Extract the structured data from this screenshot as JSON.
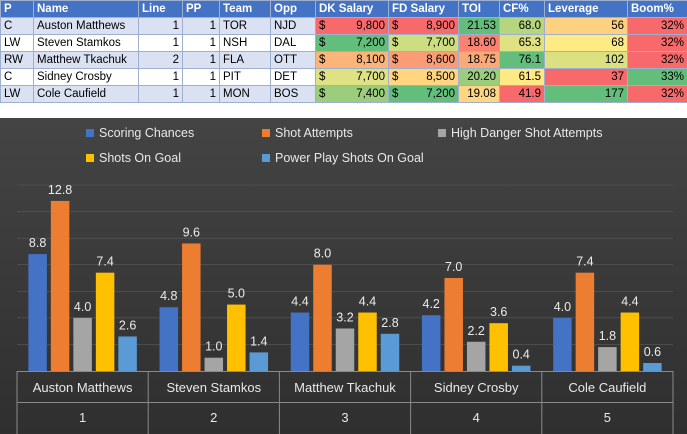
{
  "table": {
    "headers": [
      "P",
      "Name",
      "Line",
      "PP",
      "Team",
      "Opp",
      "DK Salary",
      "FD Salary",
      "TOI",
      "CF%",
      "Leverage",
      "Boom%"
    ],
    "currency_symbol": "$",
    "rows": [
      {
        "pos": "C",
        "name": "Auston Matthews",
        "line": "1",
        "pp": "1",
        "team": "TOR",
        "opp": "NJD",
        "dk": "9,800",
        "fd": "8,900",
        "toi": "21.53",
        "cf": "68.0",
        "lev": "56",
        "boom": "32%"
      },
      {
        "pos": "LW",
        "name": "Steven Stamkos",
        "line": "1",
        "pp": "1",
        "team": "NSH",
        "opp": "DAL",
        "dk": "7,200",
        "fd": "7,700",
        "toi": "18.60",
        "cf": "65.3",
        "lev": "68",
        "boom": "32%"
      },
      {
        "pos": "RW",
        "name": "Matthew Tkachuk",
        "line": "2",
        "pp": "1",
        "team": "FLA",
        "opp": "OTT",
        "dk": "8,100",
        "fd": "8,600",
        "toi": "18.75",
        "cf": "76.1",
        "lev": "102",
        "boom": "32%"
      },
      {
        "pos": "C",
        "name": "Sidney Crosby",
        "line": "1",
        "pp": "1",
        "team": "PIT",
        "opp": "DET",
        "dk": "7,700",
        "fd": "8,500",
        "toi": "20.20",
        "cf": "61.5",
        "lev": "37",
        "boom": "33%"
      },
      {
        "pos": "LW",
        "name": "Cole Caufield",
        "line": "1",
        "pp": "1",
        "team": "MON",
        "opp": "BOS",
        "dk": "7,400",
        "fd": "7,200",
        "toi": "19.08",
        "cf": "41.9",
        "lev": "177",
        "boom": "32%"
      }
    ],
    "cell_colors": [
      {
        "dk": "#f8696b",
        "fd": "#f8696b",
        "toi": "#63be7b",
        "cf": "#b5d57f",
        "lev": "#fdd17f",
        "boom": "#f8696b"
      },
      {
        "dk": "#63be7b",
        "fd": "#cddd82",
        "toi": "#f98370",
        "cf": "#dfe283",
        "lev": "#ffeb84",
        "boom": "#f8696b"
      },
      {
        "dk": "#fcb479",
        "fd": "#fa9c75",
        "toi": "#fbaa77",
        "cf": "#63be7b",
        "lev": "#dbe081",
        "boom": "#f8696b"
      },
      {
        "dk": "#dfe283",
        "fd": "#ffd580",
        "toi": "#9bcd7d",
        "cf": "#ffe984",
        "lev": "#f8696b",
        "boom": "#63be7b"
      },
      {
        "dk": "#9bcd7d",
        "fd": "#63be7b",
        "toi": "#fed681",
        "cf": "#f8696b",
        "lev": "#63be7b",
        "boom": "#f8696b"
      }
    ]
  },
  "chart_data": {
    "type": "bar",
    "categories": [
      "Auston Matthews",
      "Steven Stamkos",
      "Matthew Tkachuk",
      "Sidney Crosby",
      "Cole Caufield"
    ],
    "category_numbers": [
      "1",
      "2",
      "3",
      "4",
      "5"
    ],
    "series": [
      {
        "name": "Scoring Chances",
        "color": "#4472c4",
        "values": [
          8.8,
          4.8,
          4.4,
          4.2,
          4.0
        ]
      },
      {
        "name": "Shot Attempts",
        "color": "#ed7d31",
        "values": [
          12.8,
          9.6,
          8.0,
          7.0,
          7.4
        ]
      },
      {
        "name": "High Danger Shot Attempts",
        "color": "#a5a5a5",
        "values": [
          4.0,
          1.0,
          3.2,
          2.2,
          1.8
        ]
      },
      {
        "name": "Shots On Goal",
        "color": "#ffc000",
        "values": [
          7.4,
          5.0,
          4.4,
          3.6,
          4.4
        ]
      },
      {
        "name": "Power Play Shots On Goal",
        "color": "#5b9bd5",
        "values": [
          2.6,
          1.4,
          2.8,
          0.4,
          0.6
        ]
      }
    ],
    "ylim": [
      0,
      14
    ],
    "title": "",
    "xlabel": "",
    "ylabel": "",
    "legend_position": "top"
  }
}
